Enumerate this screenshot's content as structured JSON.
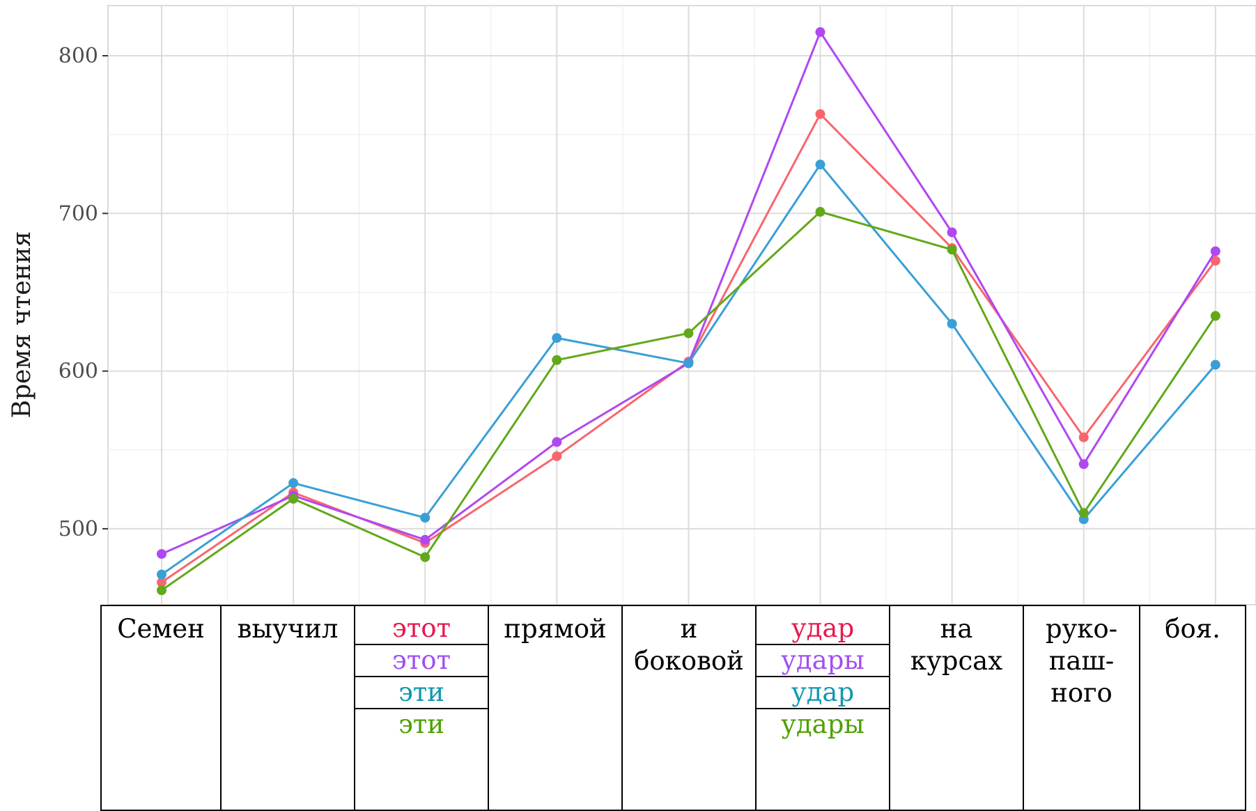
{
  "chart_data": {
    "type": "line",
    "title": "",
    "xlabel": "",
    "ylabel": "Время чтения",
    "ylim": [
      450,
      830
    ],
    "yticks": [
      500,
      600,
      700,
      800
    ],
    "grid": true,
    "categories": [
      "Семен",
      "выучил",
      "этот/эти",
      "прямой",
      "и боковой",
      "удар/удары",
      "на курсах",
      "рукопашного",
      "боя."
    ],
    "series": [
      {
        "color": "#f8666d",
        "values": [
          466,
          523,
          491,
          546,
          606,
          763,
          678,
          558,
          670
        ]
      },
      {
        "color": "#b048f0",
        "values": [
          484,
          521,
          493,
          555,
          605,
          815,
          688,
          541,
          676
        ]
      },
      {
        "color": "#3a9fd6",
        "values": [
          471,
          529,
          507,
          621,
          605,
          731,
          630,
          506,
          604
        ]
      },
      {
        "color": "#63a81a",
        "values": [
          461,
          519,
          482,
          607,
          624,
          701,
          677,
          510,
          635
        ]
      }
    ]
  },
  "table": {
    "columns": [
      {
        "lines": [
          "Семен"
        ]
      },
      {
        "lines": [
          "выучил"
        ]
      },
      {
        "variants": [
          {
            "text": "этот",
            "color": "#e8194e"
          },
          {
            "text": "этот",
            "color": "#a050f0"
          },
          {
            "text": "эти",
            "color": "#1098b0"
          },
          {
            "text": "эти",
            "color": "#4ea000"
          }
        ]
      },
      {
        "lines": [
          "прямой"
        ]
      },
      {
        "lines": [
          "и",
          "боковой"
        ]
      },
      {
        "variants": [
          {
            "text": "удар",
            "color": "#e8194e"
          },
          {
            "text": "удары",
            "color": "#a050f0"
          },
          {
            "text": "удар",
            "color": "#1098b0"
          },
          {
            "text": "удары",
            "color": "#4ea000"
          }
        ]
      },
      {
        "lines": [
          "на",
          "курсах"
        ]
      },
      {
        "lines": [
          "руко-",
          "паш-",
          "ного"
        ]
      },
      {
        "lines": [
          "боя."
        ]
      }
    ]
  }
}
